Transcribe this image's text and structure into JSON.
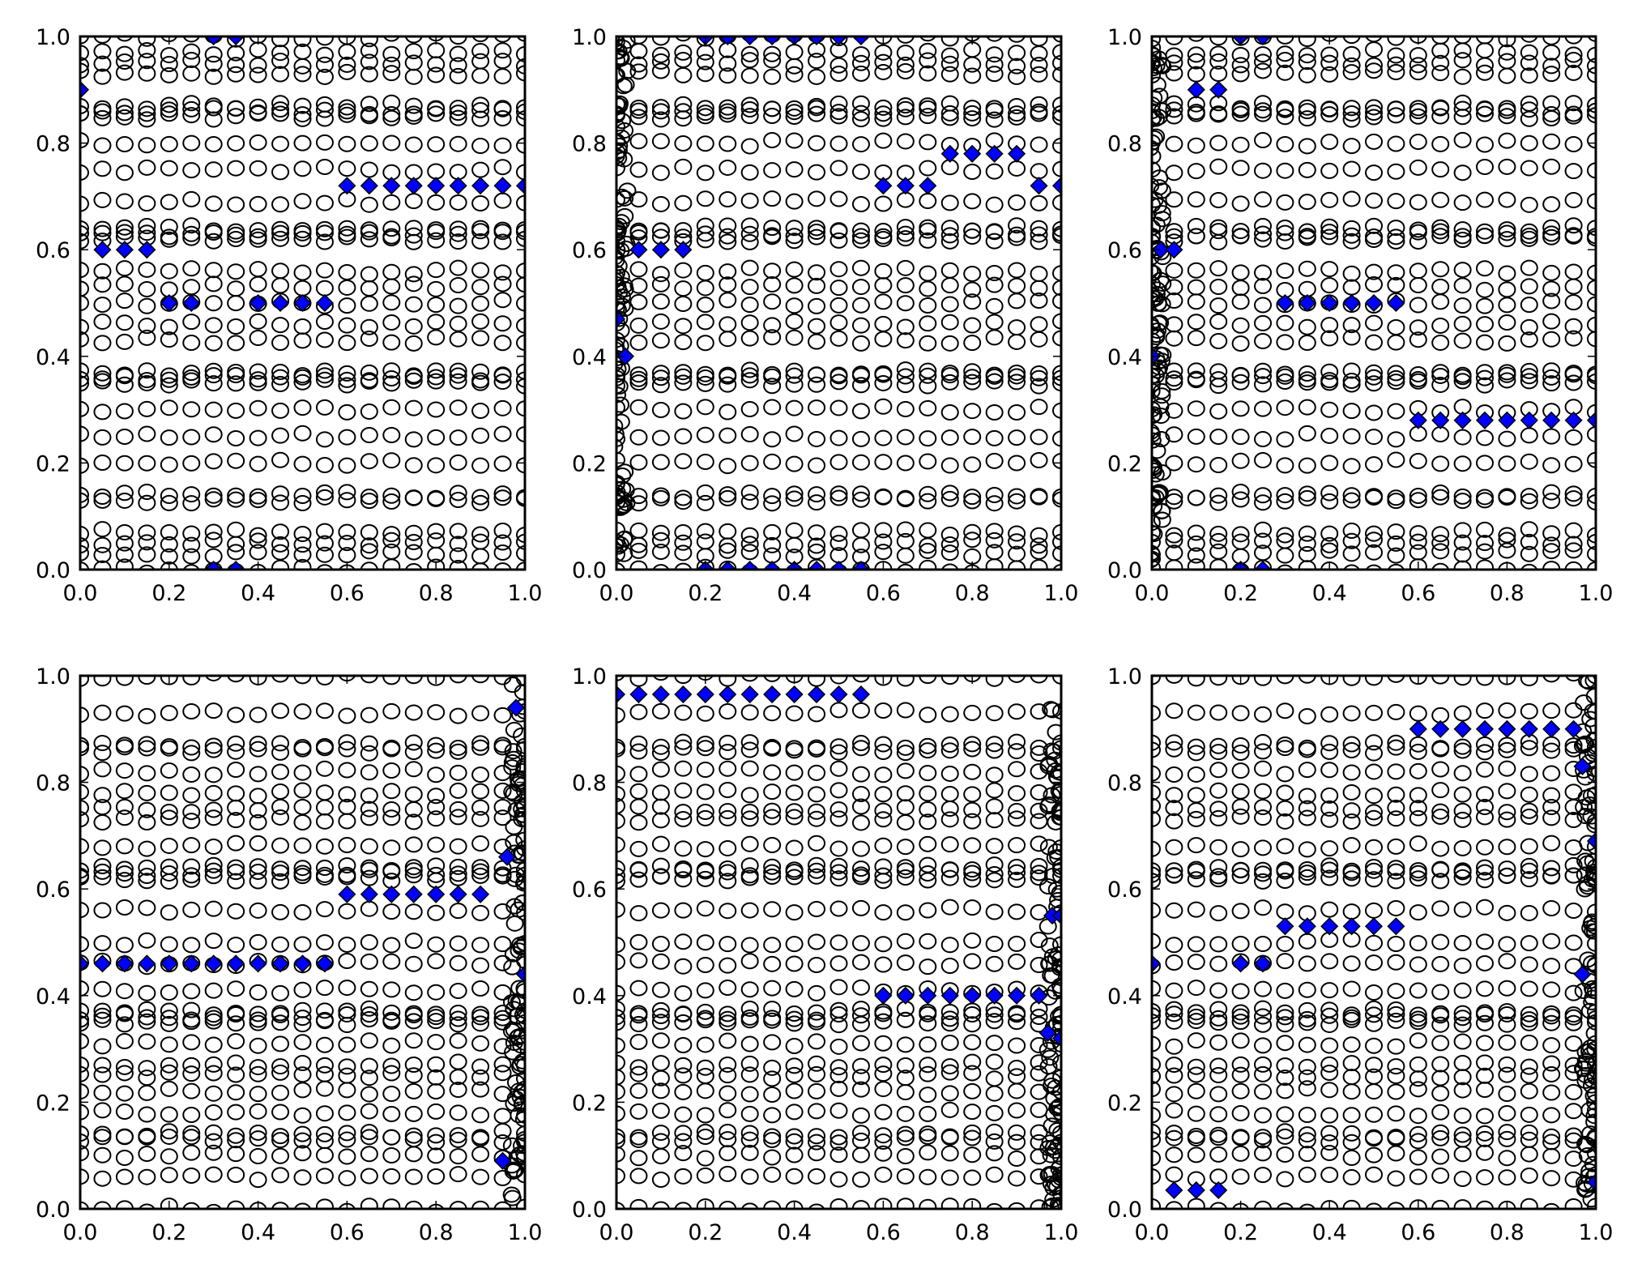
{
  "chart_data": [
    {
      "type": "scatter",
      "xlim": [
        0,
        1
      ],
      "ylim": [
        0,
        1
      ],
      "xticks": [
        "0.0",
        "0.2",
        "0.4",
        "0.6",
        "0.8",
        "1.0"
      ],
      "yticks": [
        "0.0",
        "0.2",
        "0.4",
        "0.6",
        "0.8",
        "1.0"
      ],
      "circle_x": "0 to 1 step 0.05",
      "circle_y_levels": [
        0.0,
        0.03,
        0.05,
        0.07,
        0.13,
        0.14,
        0.2,
        0.25,
        0.3,
        0.35,
        0.36,
        0.37,
        0.43,
        0.46,
        0.5,
        0.53,
        0.56,
        0.62,
        0.63,
        0.64,
        0.69,
        0.75,
        0.8,
        0.85,
        0.86,
        0.87,
        0.93,
        0.95,
        0.97,
        1.0
      ],
      "dense_edge": "none",
      "diamonds": [
        [
          0,
          0.9
        ],
        [
          0.05,
          0.6
        ],
        [
          0.1,
          0.6
        ],
        [
          0.15,
          0.6
        ],
        [
          0.2,
          0.5
        ],
        [
          0.25,
          0.5
        ],
        [
          0.4,
          0.5
        ],
        [
          0.45,
          0.5
        ],
        [
          0.5,
          0.5
        ],
        [
          0.55,
          0.5
        ],
        [
          0.6,
          0.72
        ],
        [
          0.65,
          0.72
        ],
        [
          0.7,
          0.72
        ],
        [
          0.75,
          0.72
        ],
        [
          0.8,
          0.72
        ],
        [
          0.85,
          0.72
        ],
        [
          0.9,
          0.72
        ],
        [
          0.95,
          0.72
        ],
        [
          1.0,
          0.72
        ],
        [
          0.3,
          1.0
        ],
        [
          0.35,
          1.0
        ],
        [
          0.3,
          0.0
        ],
        [
          0.35,
          0.0
        ]
      ]
    },
    {
      "type": "scatter",
      "xlim": [
        0,
        1
      ],
      "ylim": [
        0,
        1
      ],
      "xticks": [
        "0.0",
        "0.2",
        "0.4",
        "0.6",
        "0.8",
        "1.0"
      ],
      "yticks": [
        "0.0",
        "0.2",
        "0.4",
        "0.6",
        "0.8",
        "1.0"
      ],
      "circle_x": "0 to 1 step 0.05",
      "circle_y_levels": [
        0.0,
        0.03,
        0.05,
        0.07,
        0.13,
        0.14,
        0.2,
        0.25,
        0.3,
        0.35,
        0.36,
        0.37,
        0.43,
        0.46,
        0.5,
        0.53,
        0.56,
        0.62,
        0.63,
        0.64,
        0.69,
        0.75,
        0.8,
        0.85,
        0.86,
        0.87,
        0.93,
        0.95,
        0.97,
        1.0
      ],
      "dense_edge": "left",
      "diamonds": [
        [
          0.2,
          1.0
        ],
        [
          0.25,
          1.0
        ],
        [
          0.3,
          1.0
        ],
        [
          0.35,
          1.0
        ],
        [
          0.4,
          1.0
        ],
        [
          0.45,
          1.0
        ],
        [
          0.5,
          1.0
        ],
        [
          0.55,
          1.0
        ],
        [
          0.2,
          0.0
        ],
        [
          0.25,
          0.0
        ],
        [
          0.3,
          0.0
        ],
        [
          0.35,
          0.0
        ],
        [
          0.4,
          0.0
        ],
        [
          0.45,
          0.0
        ],
        [
          0.5,
          0.0
        ],
        [
          0.55,
          0.0
        ],
        [
          0.6,
          0.72
        ],
        [
          0.65,
          0.72
        ],
        [
          0.7,
          0.72
        ],
        [
          0.75,
          0.78
        ],
        [
          0.8,
          0.78
        ],
        [
          0.85,
          0.78
        ],
        [
          0.9,
          0.78
        ],
        [
          0.95,
          0.72
        ],
        [
          1.0,
          0.72
        ],
        [
          0.05,
          0.6
        ],
        [
          0.1,
          0.6
        ],
        [
          0.15,
          0.6
        ],
        [
          0.0,
          0.47
        ],
        [
          0.02,
          0.4
        ]
      ]
    },
    {
      "type": "scatter",
      "xlim": [
        0,
        1
      ],
      "ylim": [
        0,
        1
      ],
      "xticks": [
        "0.0",
        "0.2",
        "0.4",
        "0.6",
        "0.8",
        "1.0"
      ],
      "yticks": [
        "0.0",
        "0.2",
        "0.4",
        "0.6",
        "0.8",
        "1.0"
      ],
      "circle_x": "0 to 1 step 0.05",
      "circle_y_levels": [
        0.0,
        0.03,
        0.05,
        0.07,
        0.13,
        0.14,
        0.2,
        0.25,
        0.3,
        0.35,
        0.36,
        0.37,
        0.43,
        0.46,
        0.5,
        0.53,
        0.56,
        0.62,
        0.63,
        0.64,
        0.69,
        0.75,
        0.8,
        0.85,
        0.86,
        0.87,
        0.93,
        0.95,
        0.97,
        1.0
      ],
      "dense_edge": "left",
      "diamonds": [
        [
          0.2,
          1.0
        ],
        [
          0.25,
          1.0
        ],
        [
          0.2,
          0.0
        ],
        [
          0.25,
          0.0
        ],
        [
          0.1,
          0.9
        ],
        [
          0.15,
          0.9
        ],
        [
          0.02,
          0.6
        ],
        [
          0.05,
          0.6
        ],
        [
          0.3,
          0.5
        ],
        [
          0.35,
          0.5
        ],
        [
          0.4,
          0.5
        ],
        [
          0.45,
          0.5
        ],
        [
          0.5,
          0.5
        ],
        [
          0.55,
          0.5
        ],
        [
          0.6,
          0.28
        ],
        [
          0.65,
          0.28
        ],
        [
          0.7,
          0.28
        ],
        [
          0.75,
          0.28
        ],
        [
          0.8,
          0.28
        ],
        [
          0.85,
          0.28
        ],
        [
          0.9,
          0.28
        ],
        [
          0.95,
          0.28
        ],
        [
          1.0,
          0.28
        ],
        [
          0.0,
          0.4
        ]
      ]
    },
    {
      "type": "scatter",
      "xlim": [
        0,
        1
      ],
      "ylim": [
        0,
        1
      ],
      "xticks": [
        "0.0",
        "0.2",
        "0.4",
        "0.6",
        "0.8",
        "1.0"
      ],
      "yticks": [
        "0.0",
        "0.2",
        "0.4",
        "0.6",
        "0.8",
        "1.0"
      ],
      "circle_x": "0 to 1 step 0.05",
      "circle_y_levels": [
        0.0,
        0.06,
        0.1,
        0.13,
        0.14,
        0.18,
        0.22,
        0.25,
        0.27,
        0.31,
        0.35,
        0.36,
        0.37,
        0.41,
        0.46,
        0.5,
        0.56,
        0.62,
        0.63,
        0.64,
        0.68,
        0.73,
        0.75,
        0.78,
        0.82,
        0.86,
        0.87,
        0.93,
        1.0
      ],
      "dense_edge": "right",
      "diamonds": [
        [
          0.0,
          0.46
        ],
        [
          0.05,
          0.46
        ],
        [
          0.1,
          0.46
        ],
        [
          0.15,
          0.46
        ],
        [
          0.2,
          0.46
        ],
        [
          0.25,
          0.46
        ],
        [
          0.3,
          0.46
        ],
        [
          0.35,
          0.46
        ],
        [
          0.4,
          0.46
        ],
        [
          0.45,
          0.46
        ],
        [
          0.5,
          0.46
        ],
        [
          0.55,
          0.46
        ],
        [
          0.6,
          0.59
        ],
        [
          0.65,
          0.59
        ],
        [
          0.7,
          0.59
        ],
        [
          0.75,
          0.59
        ],
        [
          0.8,
          0.59
        ],
        [
          0.85,
          0.59
        ],
        [
          0.9,
          0.59
        ],
        [
          0.98,
          0.94
        ],
        [
          0.96,
          0.66
        ],
        [
          1.0,
          0.44
        ],
        [
          0.95,
          0.09
        ]
      ]
    },
    {
      "type": "scatter",
      "xlim": [
        0,
        1
      ],
      "ylim": [
        0,
        1
      ],
      "xticks": [
        "0.0",
        "0.2",
        "0.4",
        "0.6",
        "0.8",
        "1.0"
      ],
      "yticks": [
        "0.0",
        "0.2",
        "0.4",
        "0.6",
        "0.8",
        "1.0"
      ],
      "circle_x": "0 to 1 step 0.05",
      "circle_y_levels": [
        0.0,
        0.06,
        0.1,
        0.13,
        0.14,
        0.18,
        0.22,
        0.25,
        0.27,
        0.31,
        0.35,
        0.36,
        0.37,
        0.41,
        0.46,
        0.5,
        0.56,
        0.62,
        0.63,
        0.64,
        0.68,
        0.73,
        0.75,
        0.78,
        0.82,
        0.86,
        0.87,
        0.93,
        1.0
      ],
      "dense_edge": "right",
      "diamonds": [
        [
          0.0,
          0.965
        ],
        [
          0.05,
          0.965
        ],
        [
          0.1,
          0.965
        ],
        [
          0.15,
          0.965
        ],
        [
          0.2,
          0.965
        ],
        [
          0.25,
          0.965
        ],
        [
          0.3,
          0.965
        ],
        [
          0.35,
          0.965
        ],
        [
          0.4,
          0.965
        ],
        [
          0.45,
          0.965
        ],
        [
          0.5,
          0.965
        ],
        [
          0.55,
          0.965
        ],
        [
          0.6,
          0.4
        ],
        [
          0.65,
          0.4
        ],
        [
          0.7,
          0.4
        ],
        [
          0.75,
          0.4
        ],
        [
          0.8,
          0.4
        ],
        [
          0.85,
          0.4
        ],
        [
          0.9,
          0.4
        ],
        [
          0.95,
          0.4
        ],
        [
          0.98,
          0.55
        ],
        [
          1.0,
          0.55
        ],
        [
          0.97,
          0.33
        ],
        [
          1.0,
          0.32
        ]
      ]
    },
    {
      "type": "scatter",
      "xlim": [
        0,
        1
      ],
      "ylim": [
        0,
        1
      ],
      "xticks": [
        "0.0",
        "0.2",
        "0.4",
        "0.6",
        "0.8",
        "1.0"
      ],
      "yticks": [
        "0.0",
        "0.2",
        "0.4",
        "0.6",
        "0.8",
        "1.0"
      ],
      "circle_x": "0 to 1 step 0.05",
      "circle_y_levels": [
        0.0,
        0.06,
        0.1,
        0.13,
        0.14,
        0.18,
        0.22,
        0.25,
        0.27,
        0.31,
        0.35,
        0.36,
        0.37,
        0.41,
        0.46,
        0.5,
        0.56,
        0.62,
        0.63,
        0.64,
        0.68,
        0.73,
        0.75,
        0.78,
        0.82,
        0.86,
        0.87,
        0.93,
        1.0
      ],
      "dense_edge": "right",
      "diamonds": [
        [
          0.6,
          0.9
        ],
        [
          0.65,
          0.9
        ],
        [
          0.7,
          0.9
        ],
        [
          0.75,
          0.9
        ],
        [
          0.8,
          0.9
        ],
        [
          0.85,
          0.9
        ],
        [
          0.9,
          0.9
        ],
        [
          0.95,
          0.9
        ],
        [
          0.97,
          0.83
        ],
        [
          1.0,
          0.69
        ],
        [
          0.3,
          0.53
        ],
        [
          0.35,
          0.53
        ],
        [
          0.4,
          0.53
        ],
        [
          0.45,
          0.53
        ],
        [
          0.5,
          0.53
        ],
        [
          0.55,
          0.53
        ],
        [
          0.0,
          0.46
        ],
        [
          0.2,
          0.46
        ],
        [
          0.25,
          0.46
        ],
        [
          0.97,
          0.44
        ],
        [
          0.05,
          0.035
        ],
        [
          0.1,
          0.035
        ],
        [
          0.15,
          0.035
        ],
        [
          1.0,
          0.05
        ]
      ]
    }
  ],
  "colors": {
    "diamond": "#0000ff",
    "axes": "#000000"
  }
}
